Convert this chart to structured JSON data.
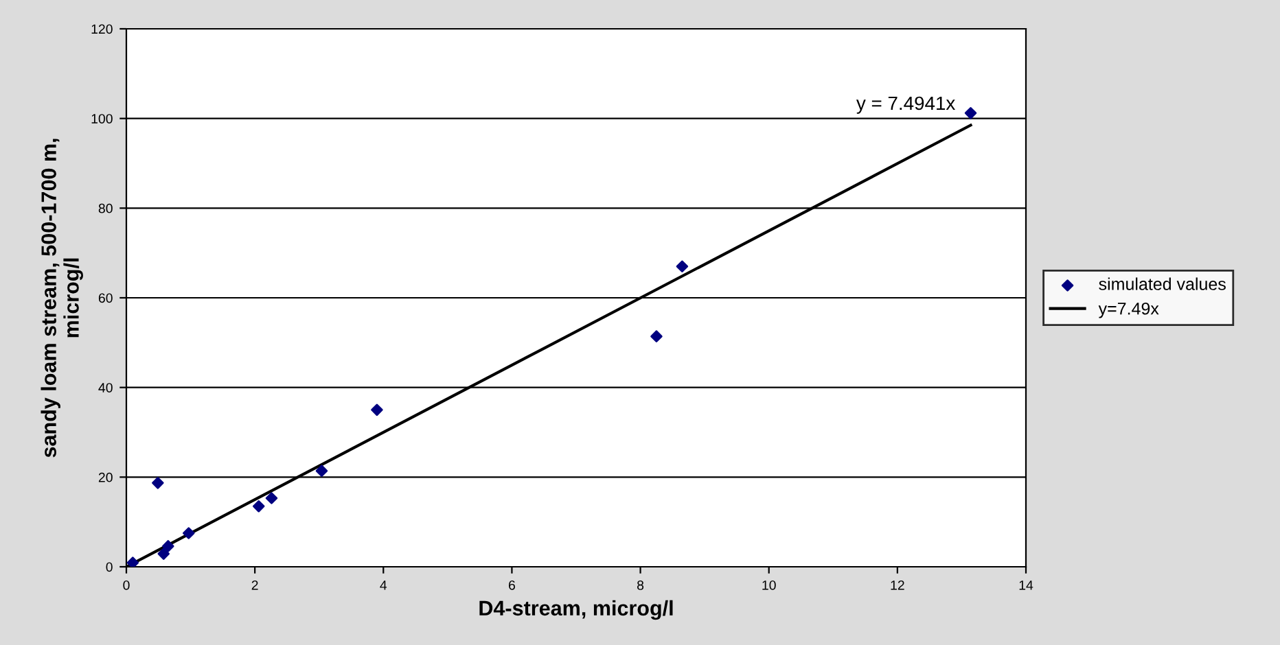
{
  "chart_data": {
    "type": "scatter",
    "xlabel": "D4-stream, microg/l",
    "ylabel": "sandy loam stream, 500-1700 m,\nmicrog/l",
    "series": [
      {
        "name": "simulated values",
        "color": "#000080",
        "marker": "diamond",
        "x": [
          0.1,
          0.49,
          0.58,
          0.65,
          0.97,
          2.06,
          2.26,
          3.04,
          3.9,
          8.25,
          8.65,
          13.14
        ],
        "values": [
          0.9,
          18.7,
          2.9,
          4.6,
          7.5,
          13.5,
          15.3,
          21.4,
          35,
          51.4,
          67,
          101.2
        ]
      },
      {
        "name": "y=7.49x",
        "type": "line",
        "color": "#000000",
        "marker": "none",
        "line_style": "solid",
        "x": [
          0,
          13.14
        ],
        "values": [
          0,
          98.5
        ]
      }
    ],
    "annotations": [
      {
        "text": "y = 7.4941x",
        "x": 13.14,
        "y": 98.5
      }
    ],
    "xlim": [
      0,
      14
    ],
    "ylim": [
      0,
      120
    ],
    "xticks": [
      0,
      2,
      4,
      6,
      8,
      10,
      12,
      14
    ],
    "yticks": [
      0,
      20,
      40,
      60,
      80,
      100,
      120
    ],
    "grid": "y",
    "legend": "right"
  }
}
